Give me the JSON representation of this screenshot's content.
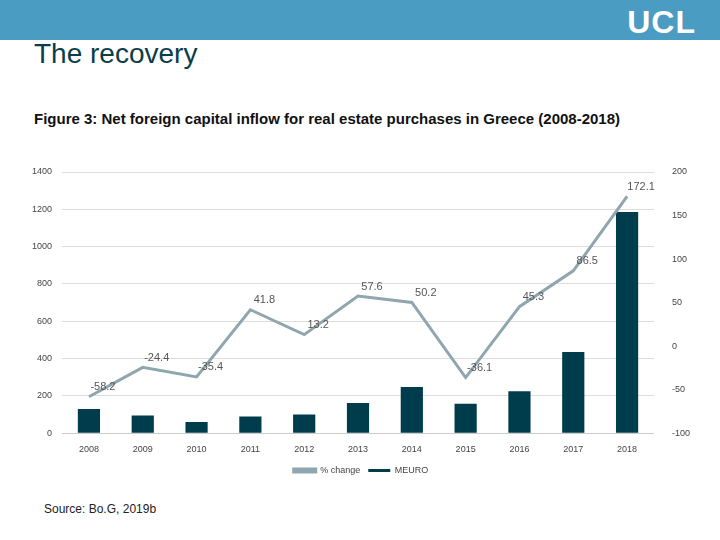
{
  "slide": {
    "title": "The recovery",
    "logo": "UCL",
    "source": "Source: Bo.G, 2019b"
  },
  "chart_data": {
    "type": "bar",
    "title": "Figure 3: Net foreign capital inflow for real estate purchases in Greece (2008-2018)",
    "categories": [
      "2008",
      "2009",
      "2010",
      "2011",
      "2012",
      "2013",
      "2014",
      "2015",
      "2016",
      "2017",
      "2018"
    ],
    "series": [
      {
        "name": "MEURO",
        "type": "bar",
        "color": "#003d4c",
        "values": [
          130,
          95,
          60,
          90,
          100,
          162,
          248,
          158,
          225,
          435,
          1185
        ]
      },
      {
        "name": "% change",
        "type": "line",
        "color": "#8fa6ae",
        "axis": "y2",
        "marker": "none",
        "data_labels": true,
        "values": [
          -58.2,
          -24.4,
          -35.4,
          41.8,
          13.2,
          57.6,
          50.2,
          -36.1,
          45.3,
          86.5,
          172.1
        ]
      }
    ],
    "ylim": [
      0,
      1400
    ],
    "yticks": [
      0,
      200,
      400,
      600,
      800,
      1000,
      1200,
      1400
    ],
    "y2lim": [
      -100,
      200
    ],
    "y2ticks": [
      -100,
      -50,
      0,
      50,
      100,
      150,
      200
    ],
    "grid": true,
    "legend": "bottom"
  }
}
